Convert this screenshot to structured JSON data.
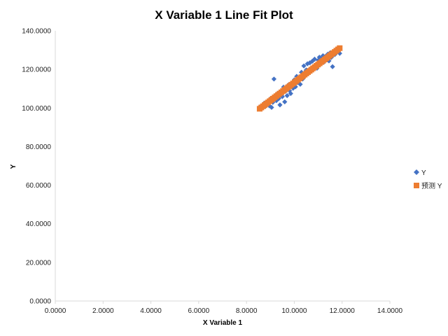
{
  "chart_data": {
    "type": "scatter",
    "title": "X Variable 1 Line Fit  Plot",
    "xlabel": "X Variable 1",
    "ylabel": "Y",
    "xlim": [
      0,
      14
    ],
    "ylim": [
      0,
      140
    ],
    "x_ticks": [
      "0.0000",
      "2.0000",
      "4.0000",
      "6.0000",
      "8.0000",
      "10.0000",
      "12.0000",
      "14.0000"
    ],
    "y_ticks": [
      "0.0000",
      "20.0000",
      "40.0000",
      "60.0000",
      "80.0000",
      "100.0000",
      "120.0000",
      "140.0000"
    ],
    "grid": false,
    "legend_position": "right",
    "series": [
      {
        "name": "Y",
        "marker": "diamond",
        "color": "#4472C4",
        "points": [
          [
            8.55,
            100.5
          ],
          [
            8.65,
            99.8
          ],
          [
            8.75,
            102.6
          ],
          [
            8.8,
            100.9
          ],
          [
            8.9,
            103.4
          ],
          [
            8.95,
            101.2
          ],
          [
            9.0,
            104.8
          ],
          [
            9.05,
            100.3
          ],
          [
            9.1,
            102.9
          ],
          [
            9.15,
            115.0
          ],
          [
            9.2,
            106.3
          ],
          [
            9.25,
            103.8
          ],
          [
            9.3,
            107.6
          ],
          [
            9.35,
            104.9
          ],
          [
            9.4,
            101.6
          ],
          [
            9.45,
            108.4
          ],
          [
            9.5,
            105.9
          ],
          [
            9.55,
            110.8
          ],
          [
            9.6,
            103.2
          ],
          [
            9.65,
            108.9
          ],
          [
            9.7,
            106.4
          ],
          [
            9.75,
            111.9
          ],
          [
            9.8,
            109.0
          ],
          [
            9.85,
            107.5
          ],
          [
            9.9,
            112.4
          ],
          [
            9.95,
            110.2
          ],
          [
            10.0,
            114.6
          ],
          [
            10.05,
            111.0
          ],
          [
            10.1,
            116.4
          ],
          [
            10.15,
            113.3
          ],
          [
            10.2,
            115.7
          ],
          [
            10.25,
            112.3
          ],
          [
            10.3,
            118.5
          ],
          [
            10.35,
            115.0
          ],
          [
            10.4,
            121.8
          ],
          [
            10.45,
            116.6
          ],
          [
            10.5,
            119.7
          ],
          [
            10.55,
            122.9
          ],
          [
            10.6,
            118.1
          ],
          [
            10.65,
            123.4
          ],
          [
            10.7,
            120.0
          ],
          [
            10.75,
            124.2
          ],
          [
            10.8,
            121.0
          ],
          [
            10.85,
            125.3
          ],
          [
            10.9,
            122.2
          ],
          [
            10.95,
            120.6
          ],
          [
            11.0,
            124.7
          ],
          [
            11.05,
            126.3
          ],
          [
            11.1,
            122.9
          ],
          [
            11.15,
            125.4
          ],
          [
            11.2,
            127.1
          ],
          [
            11.25,
            123.9
          ],
          [
            11.3,
            126.7
          ],
          [
            11.35,
            125.0
          ],
          [
            11.4,
            127.9
          ],
          [
            11.45,
            124.4
          ],
          [
            11.5,
            128.6
          ],
          [
            11.55,
            126.2
          ],
          [
            11.6,
            121.4
          ],
          [
            11.7,
            127.7
          ],
          [
            11.8,
            129.4
          ],
          [
            11.9,
            128.3
          ]
        ]
      },
      {
        "name": "预测 Y",
        "marker": "square",
        "color": "#ED7D31",
        "x_range": [
          8.55,
          11.9
        ],
        "fit": {
          "slope": 9.38,
          "intercept": 19.4
        }
      }
    ]
  }
}
